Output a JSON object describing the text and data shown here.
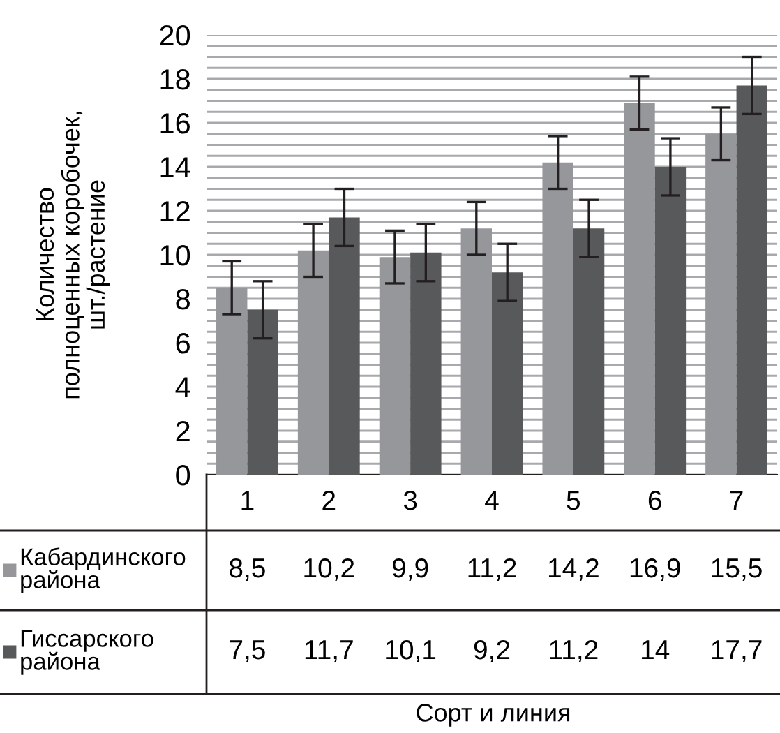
{
  "chart_data": {
    "type": "bar",
    "annotations": [
      "Сорт и линия"
    ],
    "legend": "bottom left",
    "ylabel": "Количество\nполноценных коробочек,\nшт./растение",
    "categories": [
      "1",
      "2",
      "3",
      "4",
      "5",
      "6",
      "7"
    ],
    "series": [
      {
        "name": "Кабардинского\nрайона",
        "color": "#96979b",
        "values": [
          8.5,
          10.2,
          9.9,
          11.2,
          14.2,
          16.9,
          15.5
        ],
        "errors": [
          1.2,
          1.2,
          1.2,
          1.2,
          1.2,
          1.2,
          1.2
        ],
        "value_labels": [
          "8,5",
          "10,2",
          "9,9",
          "11,2",
          "14,2",
          "16,9",
          "15,5"
        ]
      },
      {
        "name": "Гиссарского\nрайона",
        "color": "#58595b",
        "values": [
          7.5,
          11.7,
          10.1,
          9.2,
          11.2,
          14,
          17.7
        ],
        "errors": [
          1.3,
          1.3,
          1.3,
          1.3,
          1.3,
          1.3,
          1.3
        ],
        "value_labels": [
          "7,5",
          "11,7",
          "10,1",
          "9,2",
          "11,2",
          "14",
          "17,7"
        ]
      }
    ],
    "ylim": [
      0,
      20
    ],
    "yticks": [
      0,
      {
        "value": 0.5,
        "label": null
      },
      {
        "value": 1,
        "label": null
      },
      {
        "value": 1.5,
        "label": null
      },
      2,
      {
        "value": 2.5,
        "label": null
      },
      {
        "value": 3,
        "label": null
      },
      {
        "value": 3.5,
        "label": null
      },
      4,
      {
        "value": 4.5,
        "label": null
      },
      {
        "value": 5,
        "label": null
      },
      {
        "value": 5.5,
        "label": null
      },
      6,
      {
        "value": 6.5,
        "label": null
      },
      {
        "value": 7,
        "label": null
      },
      {
        "value": 7.5,
        "label": null
      },
      8,
      {
        "value": 8.5,
        "label": null
      },
      {
        "value": 9,
        "label": null
      },
      {
        "value": 9.5,
        "label": null
      },
      10,
      {
        "value": 10.5,
        "label": null
      },
      {
        "value": 11,
        "label": null
      },
      {
        "value": 11.5,
        "label": null
      },
      12,
      {
        "value": 12.5,
        "label": null
      },
      {
        "value": 13,
        "label": null
      },
      {
        "value": 13.5,
        "label": null
      },
      14,
      {
        "value": 14.5,
        "label": null
      },
      {
        "value": 15,
        "label": null
      },
      {
        "value": 15.5,
        "label": null
      },
      16,
      {
        "value": 16.5,
        "label": null
      },
      {
        "value": 17,
        "label": null
      },
      {
        "value": 17.5,
        "label": null
      },
      18,
      {
        "value": 18.5,
        "label": null
      },
      {
        "value": 19,
        "label": null
      },
      {
        "value": 19.5,
        "label": null
      },
      20
    ],
    "grid": "y"
  }
}
